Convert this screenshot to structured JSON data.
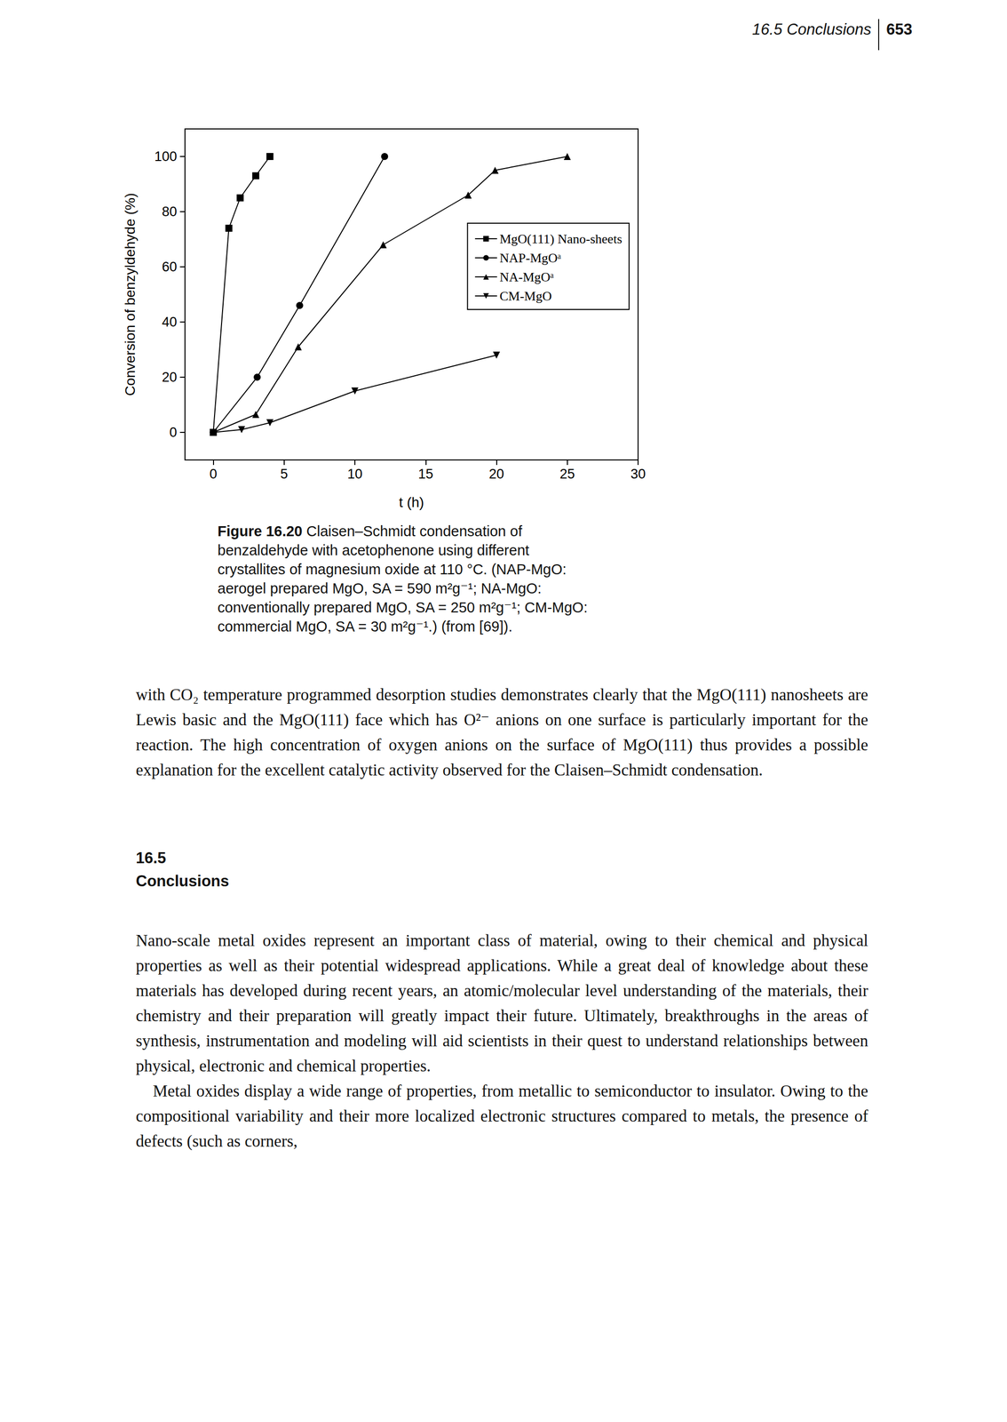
{
  "header": {
    "section": "16.5 Conclusions",
    "page": "653"
  },
  "chart_data": {
    "type": "line",
    "xlabel": "t (h)",
    "ylabel": "Conversion of benzyldehyde (%)",
    "xlim": [
      -2,
      30
    ],
    "xticks": [
      0,
      5,
      10,
      15,
      20,
      25,
      30
    ],
    "ylim": [
      -10,
      110
    ],
    "yticks": [
      0,
      20,
      40,
      60,
      80,
      100
    ],
    "grid": false,
    "legend": "right",
    "series": [
      {
        "name": "MgO(111) Nano-sheets",
        "color": "#000000",
        "marker": "square",
        "x": [
          0,
          1.1,
          1.9,
          3.0,
          4.0
        ],
        "values": [
          0,
          74,
          85,
          93,
          100
        ]
      },
      {
        "name": "NAP-MgOᵃ",
        "color": "#000000",
        "marker": "circle",
        "x": [
          0,
          3.1,
          6.1,
          12.1
        ],
        "values": [
          0,
          20,
          46,
          100
        ]
      },
      {
        "name": "NA-MgOᵃ",
        "color": "#000000",
        "marker": "triangle",
        "x": [
          0,
          3.0,
          6.0,
          12.0,
          18.0,
          19.9,
          25.0
        ],
        "values": [
          0,
          6.5,
          31,
          68,
          86,
          95,
          100
        ]
      },
      {
        "name": "CM-MgO",
        "color": "#000000",
        "marker": "triangle-down",
        "x": [
          0,
          2.0,
          4.0,
          10.0,
          20.0
        ],
        "values": [
          0,
          1,
          3.5,
          15,
          28
        ]
      }
    ]
  },
  "caption": {
    "label": "Figure 16.20",
    "text": "Claisen–Schmidt condensation of benzaldehyde with acetophenone using different crystallites of magnesium oxide at 110 °C. (NAP-MgO: aerogel prepared MgO, SA = 590 m²g⁻¹; NA-MgO: conventionally prepared MgO, SA = 250 m²g⁻¹; CM-MgO: commercial MgO, SA = 30 m²g⁻¹.) (from [69])."
  },
  "body": {
    "paragraphs_before": [
      "with CO₂ temperature programmed desorption studies demonstrates clearly that the MgO(111) nanosheets are Lewis basic and the MgO(111) face which has O²⁻ anions on one surface is particularly important for the reaction. The high concentration of oxygen anions on the surface of MgO(111) thus provides a possible explanation for the excellent catalytic activity observed for the Claisen–Schmidt condensation."
    ],
    "section": {
      "number": "16.5",
      "title": "Conclusions"
    },
    "paragraphs": [
      "Nano-scale metal oxides represent an important class of material, owing to their chemical and physical properties as well as their potential widespread applications. While a great deal of knowledge about these materials has developed during recent years, an atomic/molecular level understanding of the materials, their chemistry and their preparation will greatly impact their future. Ultimately, breakthroughs in the areas of synthesis, instrumentation and modeling will aid scientists in their quest to understand relationships between physical, electronic and chemical properties.",
      "Metal oxides display a wide range of properties, from metallic to semiconductor to insulator. Owing to the compositional variability and their more localized electronic structures compared to metals, the presence of defects (such as corners,"
    ]
  }
}
